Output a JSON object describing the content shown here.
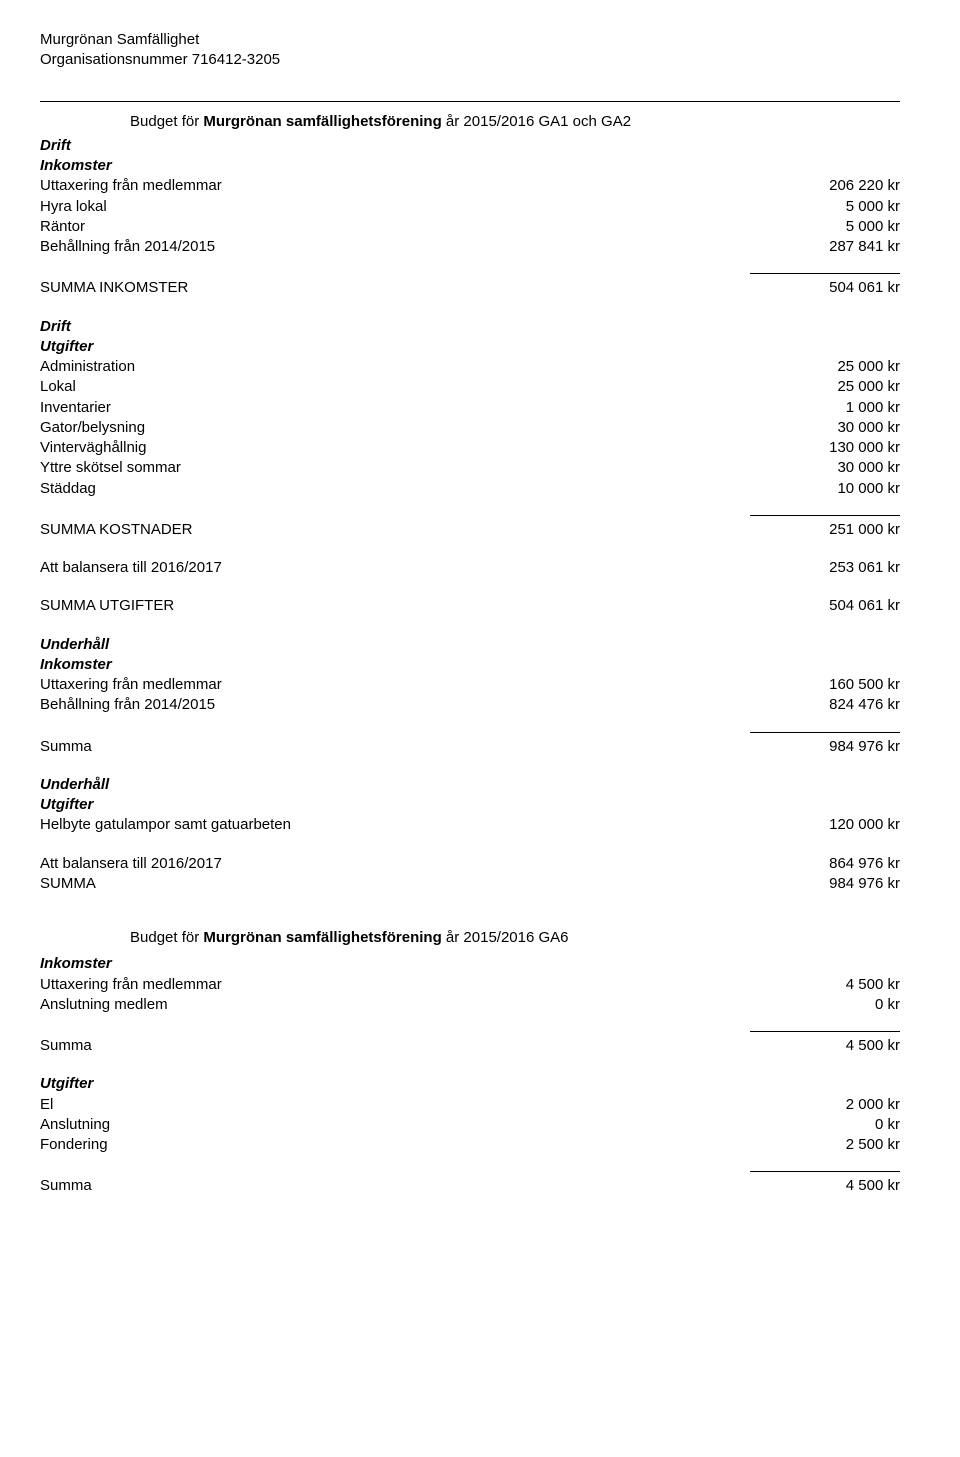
{
  "header": {
    "org_name": "Murgrönan Samfällighet",
    "org_number_line": "Organisationsnummer 716412-3205"
  },
  "title1": {
    "prefix": "Budget för ",
    "bold": "Murgrönan samfällighetsförening",
    "suffix": " år 2015/2016 GA1 och GA2"
  },
  "drift_inkomster": {
    "heading_drift": "Drift",
    "heading_inkomster": "Inkomster",
    "rows": [
      {
        "label": "Uttaxering från medlemmar",
        "value": "206 220 kr"
      },
      {
        "label": "Hyra lokal",
        "value": "5 000 kr"
      },
      {
        "label": "Räntor",
        "value": "5 000 kr"
      },
      {
        "label": "Behållning från 2014/2015",
        "value": "287 841 kr"
      }
    ],
    "sum_label": "SUMMA INKOMSTER",
    "sum_value": "504 061 kr"
  },
  "drift_utgifter": {
    "heading_drift": "Drift",
    "heading_utgifter": "Utgifter",
    "rows": [
      {
        "label": "Administration",
        "value": "25 000 kr"
      },
      {
        "label": "Lokal",
        "value": "25 000 kr"
      },
      {
        "label": "Inventarier",
        "value": "1 000 kr"
      },
      {
        "label": "Gator/belysning",
        "value": "30 000 kr"
      },
      {
        "label": "Vinterväghållnig",
        "value": "130 000 kr"
      },
      {
        "label": "Yttre skötsel sommar",
        "value": "30 000 kr"
      },
      {
        "label": "Städdag",
        "value": "10 000 kr"
      }
    ],
    "sum_label": "SUMMA KOSTNADER",
    "sum_value": "251 000 kr"
  },
  "balance1": {
    "label": "Att balansera till 2016/2017",
    "value": "253 061 kr"
  },
  "summa_utgifter": {
    "label": "SUMMA UTGIFTER",
    "value": "504 061 kr"
  },
  "underhall_inkomster": {
    "heading_underhall": "Underhåll",
    "heading_inkomster": "Inkomster",
    "rows": [
      {
        "label": "Uttaxering från medlemmar",
        "value": "160 500 kr"
      },
      {
        "label": "Behållning från 2014/2015",
        "value": "824 476 kr"
      }
    ],
    "sum_label": "Summa",
    "sum_value": "984 976 kr"
  },
  "underhall_utgifter": {
    "heading_underhall": "Underhåll",
    "heading_utgifter": "Utgifter",
    "rows": [
      {
        "label": "Helbyte gatulampor samt gatuarbeten",
        "value": "120 000 kr"
      }
    ]
  },
  "balance2": {
    "label": "Att balansera till 2016/2017",
    "value": "864 976 kr"
  },
  "summa2": {
    "label": "SUMMA",
    "value": "984 976 kr"
  },
  "title2": {
    "prefix": "Budget för ",
    "bold": "Murgrönan samfällighetsförening",
    "suffix": " år 2015/2016 GA6"
  },
  "ga6_inkomster": {
    "heading_inkomster": "Inkomster",
    "rows": [
      {
        "label": "Uttaxering från medlemmar",
        "value": "4 500 kr"
      },
      {
        "label": "Anslutning medlem",
        "value": "0 kr"
      }
    ],
    "sum_label": "Summa",
    "sum_value": "4 500 kr"
  },
  "ga6_utgifter": {
    "heading_utgifter": "Utgifter",
    "rows": [
      {
        "label": "El",
        "value": "2 000 kr"
      },
      {
        "label": "Anslutning",
        "value": "0 kr"
      },
      {
        "label": "Fondering",
        "value": "2 500 kr"
      }
    ],
    "sum_label": "Summa",
    "sum_value": "4 500 kr"
  }
}
